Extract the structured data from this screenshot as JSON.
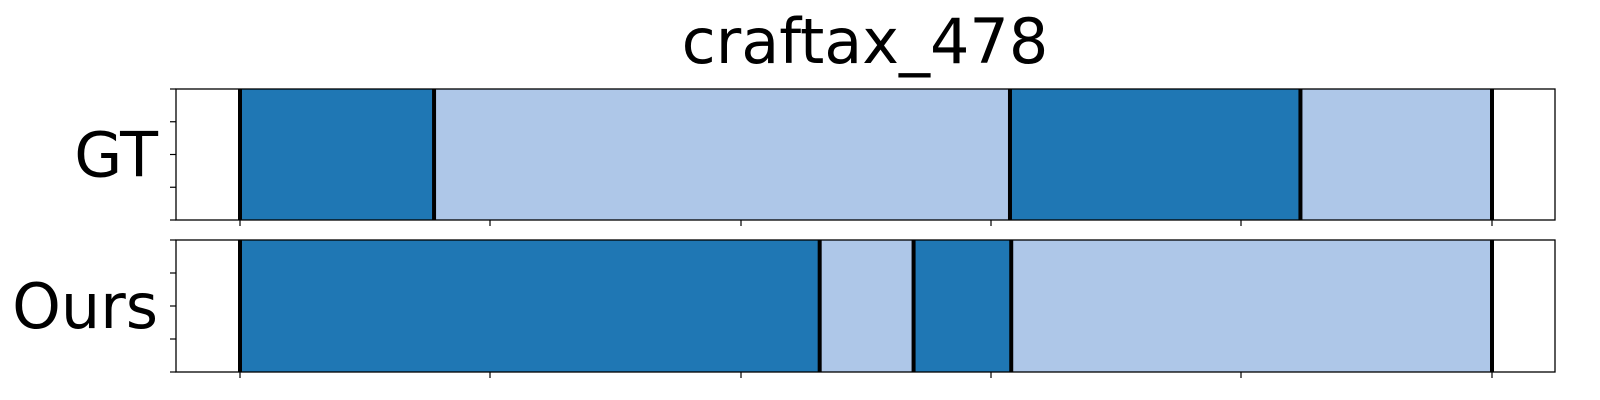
{
  "chart_data": {
    "type": "bar",
    "title": "craftax_478",
    "xlim": [
      0,
      1
    ],
    "grid": false,
    "colors": {
      "dark": "#1f77b4",
      "light": "#aec7e8",
      "boundary": "#000000"
    },
    "series": [
      {
        "name": "GT",
        "segments": [
          {
            "start": 0.0,
            "end": 0.155,
            "color": "dark"
          },
          {
            "start": 0.155,
            "end": 0.615,
            "color": "light"
          },
          {
            "start": 0.615,
            "end": 0.847,
            "color": "dark"
          },
          {
            "start": 0.847,
            "end": 1.0,
            "color": "light"
          }
        ]
      },
      {
        "name": "Ours",
        "segments": [
          {
            "start": 0.0,
            "end": 0.463,
            "color": "dark"
          },
          {
            "start": 0.463,
            "end": 0.538,
            "color": "light"
          },
          {
            "start": 0.538,
            "end": 0.616,
            "color": "dark"
          },
          {
            "start": 0.616,
            "end": 1.0,
            "color": "light"
          }
        ]
      }
    ]
  }
}
